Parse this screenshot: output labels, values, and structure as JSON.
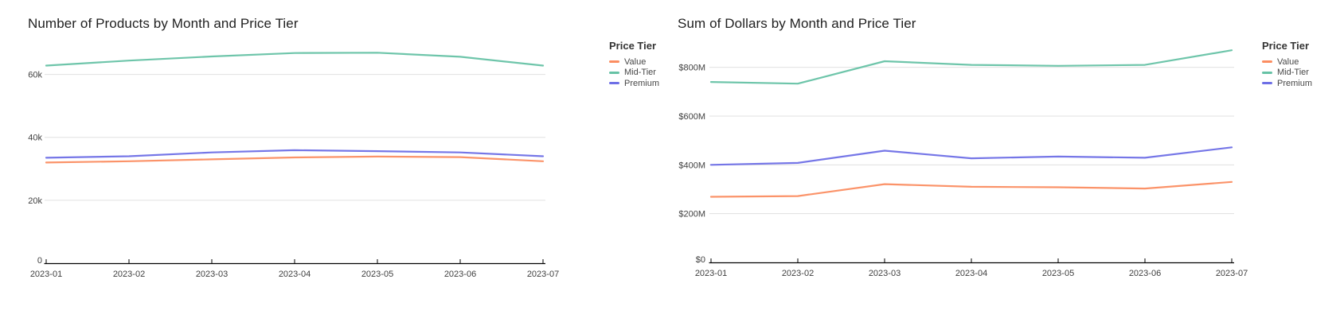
{
  "page": {
    "background": "#ffffff"
  },
  "styles": {
    "grid_color": "#e0e0e0",
    "axis_color": "#000000",
    "tick_label_color": "#404040",
    "title_color": "#1f1f1f"
  },
  "chart_data": [
    {
      "type": "line",
      "title": "Number of Products by Month and Price Tier",
      "legend_title": "Price Tier",
      "legend_position": "right-top",
      "grid": true,
      "xlabel": "",
      "ylabel": "",
      "x": [
        "2023-01",
        "2023-02",
        "2023-03",
        "2023-04",
        "2023-05",
        "2023-06",
        "2023-07"
      ],
      "ylim": [
        0,
        70000
      ],
      "yticks": [
        {
          "value": 0,
          "label": "0"
        },
        {
          "value": 20000,
          "label": "20k"
        },
        {
          "value": 40000,
          "label": "40k"
        },
        {
          "value": 60000,
          "label": "60k"
        }
      ],
      "series": [
        {
          "name": "Value",
          "color": "#fb8d61",
          "values": [
            32000,
            32400,
            33000,
            33600,
            33900,
            33700,
            32400
          ]
        },
        {
          "name": "Mid-Tier",
          "color": "#66c2a5",
          "values": [
            62800,
            64400,
            65700,
            66800,
            66900,
            65600,
            62800
          ]
        },
        {
          "name": "Premium",
          "color": "#6e6fe6",
          "values": [
            33500,
            34000,
            35200,
            35900,
            35600,
            35200,
            34000
          ]
        }
      ]
    },
    {
      "type": "line",
      "title": "Sum of Dollars by Month and Price Tier",
      "legend_title": "Price Tier",
      "legend_position": "right-top",
      "grid": true,
      "xlabel": "",
      "ylabel": "",
      "unit": "USD millions",
      "x": [
        "2023-01",
        "2023-02",
        "2023-03",
        "2023-04",
        "2023-05",
        "2023-06",
        "2023-07"
      ],
      "ylim": [
        0,
        900
      ],
      "yticks": [
        {
          "value": 0,
          "label": "$0"
        },
        {
          "value": 200,
          "label": "$200M"
        },
        {
          "value": 400,
          "label": "$400M"
        },
        {
          "value": 600,
          "label": "$600M"
        },
        {
          "value": 800,
          "label": "$800M"
        }
      ],
      "series": [
        {
          "name": "Value",
          "color": "#fb8d61",
          "values": [
            269,
            272,
            321,
            310,
            308,
            303,
            330
          ]
        },
        {
          "name": "Mid-Tier",
          "color": "#66c2a5",
          "values": [
            740,
            733,
            825,
            810,
            806,
            810,
            870
          ]
        },
        {
          "name": "Premium",
          "color": "#6e6fe6",
          "values": [
            400,
            408,
            458,
            427,
            434,
            429,
            472
          ]
        }
      ]
    }
  ]
}
